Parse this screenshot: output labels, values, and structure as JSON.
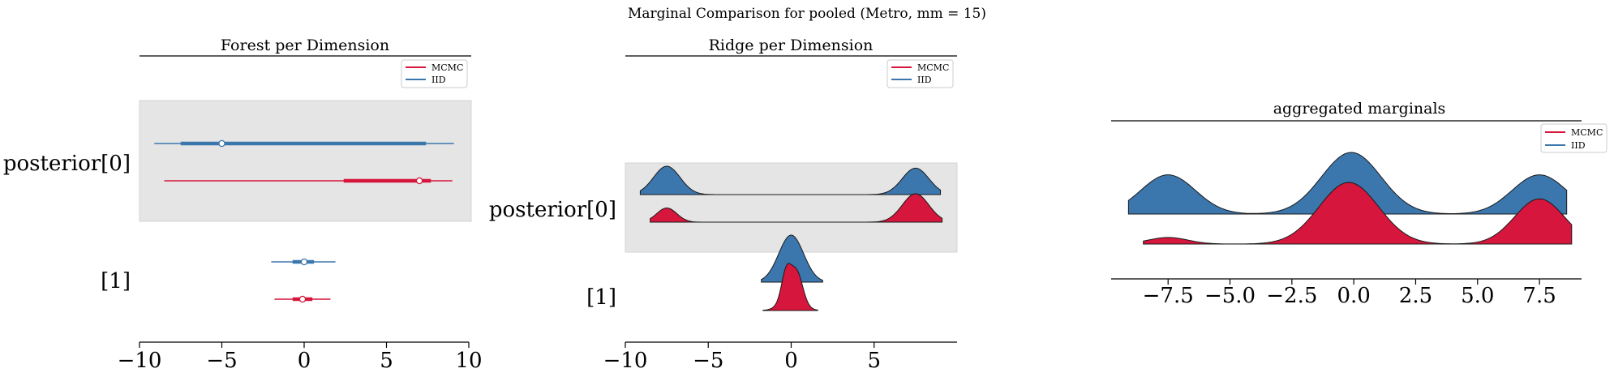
{
  "suptitle": "Marginal Comparison for pooled (Metro, mm = 15)",
  "colors": {
    "MCMC": "#d6163c",
    "IID": "#3b76ad",
    "band": "#e5e5e5"
  },
  "chart_data": [
    {
      "type": "forest",
      "title": "Forest per Dimension",
      "legend": [
        "MCMC",
        "IID"
      ],
      "legend_loc": "upper-right",
      "xlim": [
        -10,
        10
      ],
      "xticks": [
        -10,
        -5,
        0,
        5,
        10
      ],
      "xtick_labels": [
        "−10",
        "−5",
        "0",
        "5",
        "10"
      ],
      "ylabels": [
        "posterior[0]",
        "[1]"
      ],
      "series": [
        {
          "name": "IID",
          "row": 0,
          "min": -9.1,
          "q25": -7.5,
          "median": -5.0,
          "q75": 7.4,
          "max": 9.1
        },
        {
          "name": "MCMC",
          "row": 0,
          "min": -8.5,
          "q25": 2.4,
          "median": 7.0,
          "q75": 7.7,
          "max": 9.0
        },
        {
          "name": "IID",
          "row": 1,
          "min": -2.0,
          "q25": -0.7,
          "median": 0.0,
          "q75": 0.6,
          "max": 1.9
        },
        {
          "name": "MCMC",
          "row": 1,
          "min": -1.8,
          "q25": -0.7,
          "median": -0.1,
          "q75": 0.5,
          "max": 1.6
        }
      ]
    },
    {
      "type": "ridgeline",
      "title": "Ridge per Dimension",
      "legend": [
        "MCMC",
        "IID"
      ],
      "legend_loc": "upper-right",
      "xlim": [
        -10,
        10
      ],
      "xticks": [
        -10,
        -5,
        0,
        5
      ],
      "xtick_labels": [
        "−10",
        "−5",
        "0",
        "5"
      ],
      "ylabels": [
        "posterior[0]",
        "[1]"
      ],
      "series": [
        {
          "name": "IID",
          "row": 0,
          "range": [
            -9.1,
            9.0
          ],
          "peaks": [
            [
              -7.5,
              0.8,
              0.75
            ],
            [
              7.5,
              0.8,
              0.7
            ]
          ]
        },
        {
          "name": "MCMC",
          "row": 0,
          "range": [
            -8.5,
            9.1
          ],
          "peaks": [
            [
              -7.5,
              0.6,
              0.45
            ],
            [
              7.5,
              0.8,
              0.9
            ]
          ]
        },
        {
          "name": "IID",
          "row": 1,
          "range": [
            -1.8,
            1.9
          ],
          "peaks": [
            [
              0.0,
              0.75,
              1.0
            ]
          ]
        },
        {
          "name": "MCMC",
          "row": 1,
          "range": [
            -1.7,
            1.6
          ],
          "peaks": [
            [
              -0.3,
              0.28,
              1.0
            ],
            [
              0.35,
              0.35,
              1.0
            ],
            [
              0.0,
              0.6,
              0.55
            ]
          ]
        }
      ]
    },
    {
      "type": "ridgeline",
      "title": "aggregated marginals",
      "legend": [
        "MCMC",
        "IID"
      ],
      "legend_loc": "upper-right",
      "xlim": [
        -9.8,
        9.2
      ],
      "xticks": [
        -7.5,
        -5.0,
        -2.5,
        0.0,
        2.5,
        5.0,
        7.5
      ],
      "xtick_labels": [
        "−7.5",
        "−5.0",
        "−2.5",
        "0.0",
        "2.5",
        "5.0",
        "7.5"
      ],
      "series": [
        {
          "name": "IID",
          "row": 0,
          "range": [
            -9.1,
            8.6
          ],
          "peaks": [
            [
              -7.5,
              1.1,
              0.35
            ],
            [
              -0.1,
              1.2,
              0.55
            ],
            [
              7.5,
              1.1,
              0.35
            ]
          ]
        },
        {
          "name": "MCMC",
          "row": 1,
          "range": [
            -8.5,
            8.8
          ],
          "peaks": [
            [
              -7.5,
              0.8,
              0.08
            ],
            [
              -0.2,
              1.2,
              0.75
            ],
            [
              7.5,
              1.0,
              0.55
            ]
          ]
        }
      ]
    }
  ]
}
